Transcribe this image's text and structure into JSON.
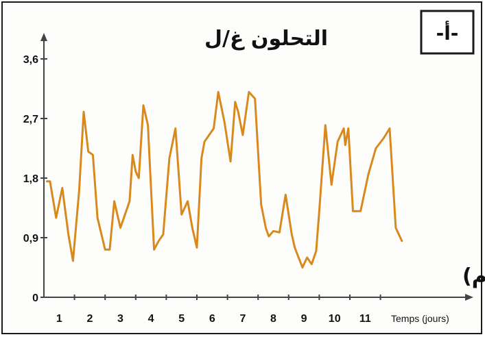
{
  "panel_label": "-أ-",
  "chart_data": {
    "type": "line",
    "title": "",
    "ylabel": "التحلون غ/ل",
    "xlabel": "الزمن ( ايام)",
    "xlabel_secondary": "Temps (jours)",
    "xlim": [
      0,
      13.2
    ],
    "ylim": [
      0,
      3.6
    ],
    "y_ticks": [
      "0",
      "0,9",
      "1,8",
      "2,7",
      "3,6"
    ],
    "x_ticks": [
      "1",
      "2",
      "3",
      "4",
      "5",
      "6",
      "7",
      "8",
      "9",
      "10",
      "11"
    ],
    "line_color": "#d9891c",
    "axis_color": "#444444",
    "grid": false,
    "x": [
      0.1,
      0.2,
      0.4,
      0.6,
      0.8,
      0.95,
      1.15,
      1.3,
      1.45,
      1.6,
      1.75,
      2.0,
      2.15,
      2.3,
      2.5,
      2.65,
      2.8,
      2.9,
      3.0,
      3.1,
      3.25,
      3.4,
      3.6,
      3.75,
      3.9,
      4.1,
      4.3,
      4.5,
      4.7,
      4.85,
      5.0,
      5.15,
      5.25,
      5.4,
      5.55,
      5.7,
      5.9,
      6.1,
      6.25,
      6.35,
      6.5,
      6.7,
      6.9,
      7.1,
      7.25,
      7.35,
      7.5,
      7.7,
      7.9,
      8.1,
      8.2,
      8.45,
      8.6,
      8.75,
      8.9,
      9.0,
      9.2,
      9.4,
      9.6,
      9.8,
      9.85,
      9.95,
      10.1,
      10.35,
      10.6,
      10.85,
      11.1,
      11.3,
      11.5,
      11.7
    ],
    "y": [
      1.75,
      1.75,
      1.2,
      1.65,
      0.95,
      0.55,
      1.6,
      2.8,
      2.2,
      2.15,
      1.2,
      0.72,
      0.72,
      1.45,
      1.05,
      1.25,
      1.45,
      2.15,
      1.9,
      1.8,
      2.9,
      2.6,
      0.72,
      0.85,
      0.95,
      2.1,
      2.55,
      1.25,
      1.45,
      1.05,
      0.75,
      2.1,
      2.35,
      2.45,
      2.55,
      3.1,
      2.65,
      2.05,
      2.95,
      2.8,
      2.45,
      3.1,
      3.0,
      1.4,
      1.05,
      0.92,
      1.0,
      0.98,
      1.55,
      0.95,
      0.75,
      0.45,
      0.6,
      0.5,
      0.7,
      1.3,
      2.6,
      1.7,
      2.35,
      2.55,
      2.3,
      2.55,
      1.3,
      1.3,
      1.85,
      2.25,
      2.4,
      2.55,
      1.05,
      0.85
    ]
  }
}
